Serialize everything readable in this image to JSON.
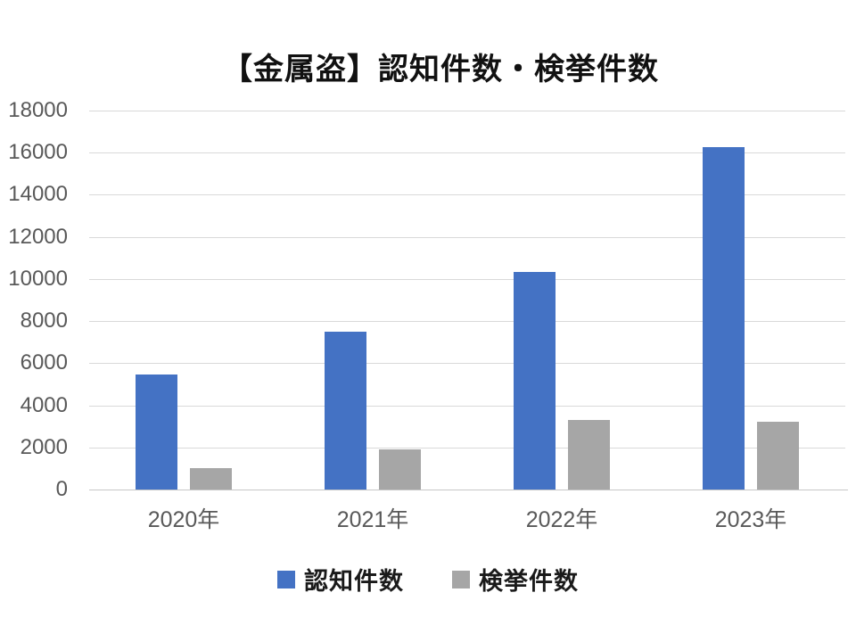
{
  "title": "【金属盗】認知件数・検挙件数",
  "colors": {
    "series_blue": "#4472C4",
    "series_gray": "#A6A6A6",
    "gridline": "#D9D9D9",
    "axis_line": "#C6C6C6",
    "tick_label": "#595959",
    "title_text": "#111111"
  },
  "chart_data": {
    "type": "bar",
    "title": "【金属盗】認知件数・検挙件数",
    "categories": [
      "2020年",
      "2021年",
      "2022年",
      "2023年"
    ],
    "series": [
      {
        "name": "認知件数",
        "color": "#4472C4",
        "values": [
          5480,
          7500,
          10350,
          16280
        ]
      },
      {
        "name": "検挙件数",
        "color": "#A6A6A6",
        "values": [
          1000,
          1900,
          3300,
          3200
        ]
      }
    ],
    "xlabel": "",
    "ylabel": "",
    "ylim": [
      0,
      18000
    ],
    "ytick_step": 2000,
    "yticks": [
      "0",
      "2000",
      "4000",
      "6000",
      "8000",
      "10000",
      "12000",
      "14000",
      "16000",
      "18000"
    ],
    "grid": true,
    "legend_position": "bottom"
  }
}
